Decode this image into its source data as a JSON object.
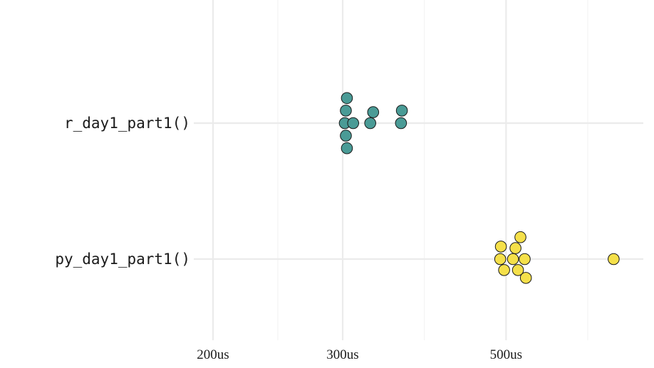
{
  "chart_data": {
    "type": "scatter",
    "subtype": "beeswarm",
    "title": "",
    "xlabel": "",
    "ylabel": "",
    "x_scale": "log10",
    "x_unit": "us",
    "xlim": [
      200,
      720
    ],
    "x_ticks": [
      {
        "value": 200,
        "label": "200us"
      },
      {
        "value": 300,
        "label": "300us"
      },
      {
        "value": 500,
        "label": "500us"
      }
    ],
    "categories": [
      "r_day1_part1()",
      "py_day1_part1()"
    ],
    "grid": true,
    "legend": "none",
    "series": [
      {
        "category": "r_day1_part1()",
        "color": "#4a9b96",
        "values": [
          302,
          303,
          303,
          304,
          304,
          310,
          327,
          330,
          360,
          361
        ]
      },
      {
        "category": "py_day1_part1()",
        "color": "#f5e04a",
        "values": [
          491,
          492,
          497,
          511,
          515,
          519,
          523,
          530,
          532,
          700
        ]
      }
    ]
  }
}
